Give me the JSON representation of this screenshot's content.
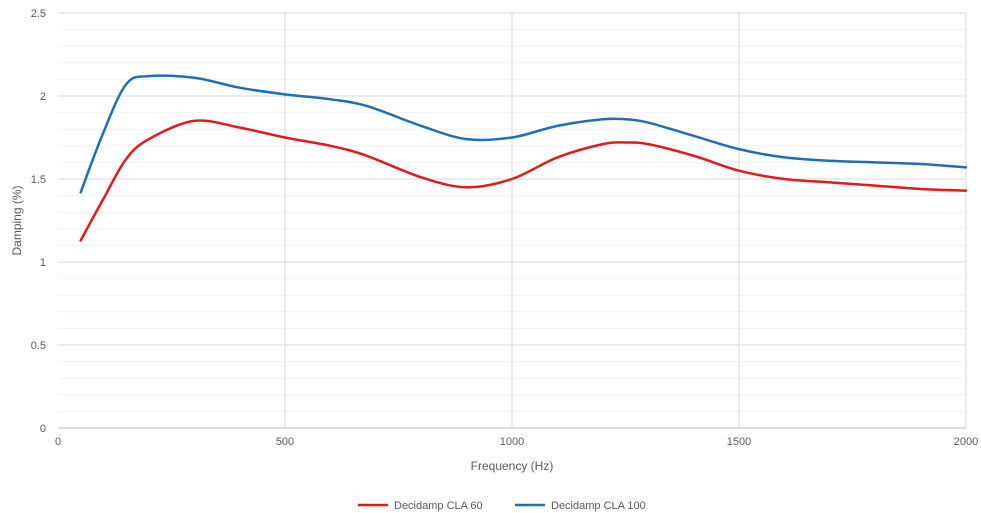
{
  "chart_data": {
    "type": "line",
    "title": "",
    "xlabel": "Frequency (Hz)",
    "ylabel": "Damping (%)",
    "xlim": [
      0,
      2000
    ],
    "ylim": [
      0,
      2.5
    ],
    "x_ticks": [
      0,
      500,
      1000,
      1500,
      2000
    ],
    "y_ticks": [
      0,
      0.5,
      1,
      1.5,
      2,
      2.5
    ],
    "x_tick_labels": [
      "0",
      "500",
      "1000",
      "1500",
      "2000"
    ],
    "y_tick_labels": [
      "0",
      "0.5",
      "1",
      "1.5",
      "2",
      "2.5"
    ],
    "grid": true,
    "minor_y_grid": true,
    "legend_position": "bottom",
    "series": [
      {
        "name": "Decidamp CLA 60",
        "color": "#e31a1c",
        "x": [
          50,
          100,
          150,
          200,
          300,
          400,
          500,
          600,
          680,
          800,
          900,
          1000,
          1100,
          1200,
          1250,
          1300,
          1400,
          1500,
          1600,
          1700,
          1800,
          1900,
          2000
        ],
        "y": [
          1.13,
          1.38,
          1.62,
          1.74,
          1.85,
          1.81,
          1.75,
          1.7,
          1.64,
          1.51,
          1.45,
          1.5,
          1.63,
          1.71,
          1.72,
          1.71,
          1.64,
          1.55,
          1.5,
          1.48,
          1.46,
          1.44,
          1.43
        ]
      },
      {
        "name": "Decidamp CLA 100",
        "color": "#1f6fb4",
        "x": [
          50,
          100,
          150,
          200,
          300,
          400,
          500,
          600,
          680,
          800,
          900,
          1000,
          1100,
          1200,
          1250,
          1300,
          1400,
          1500,
          1600,
          1700,
          1800,
          1900,
          2000
        ],
        "y": [
          1.42,
          1.78,
          2.07,
          2.12,
          2.11,
          2.05,
          2.01,
          1.98,
          1.94,
          1.82,
          1.74,
          1.75,
          1.82,
          1.86,
          1.86,
          1.84,
          1.76,
          1.68,
          1.63,
          1.61,
          1.6,
          1.59,
          1.57
        ]
      }
    ]
  }
}
